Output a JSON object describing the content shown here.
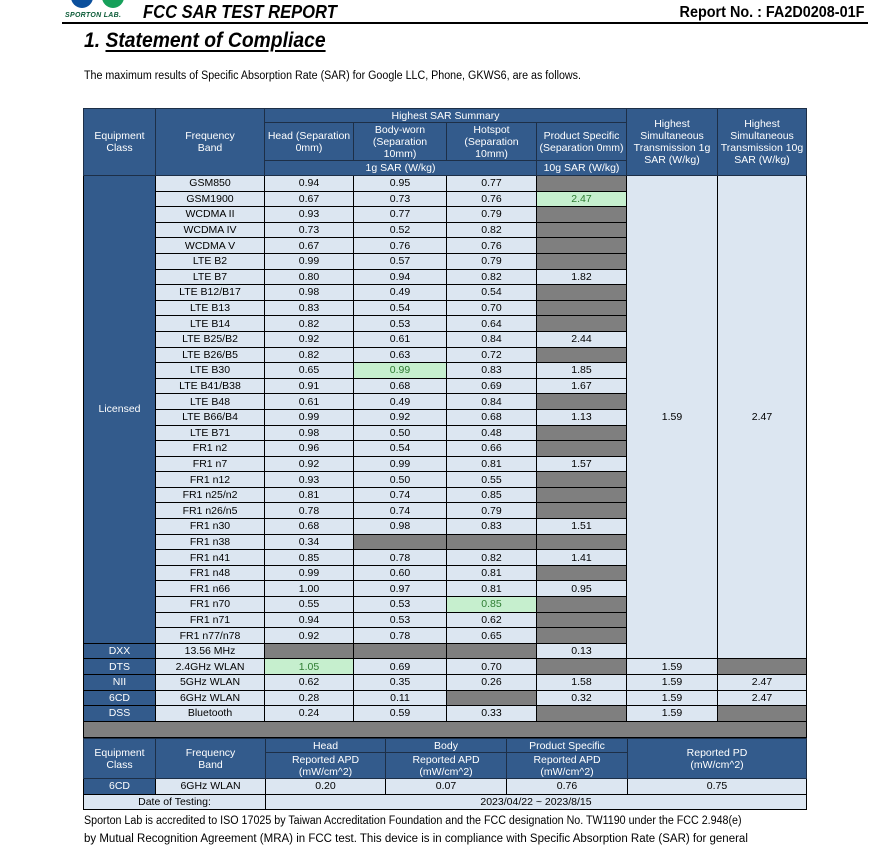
{
  "header": {
    "logo_text": "SPORTON LAB.",
    "title": "FCC SAR TEST REPORT",
    "report_no": "Report No. : FA2D0208-01F"
  },
  "section": {
    "number": "1.",
    "title": "Statement of Compliace"
  },
  "intro": "The maximum results of Specific Absorption Rate (SAR) for Google LLC, Phone, GKWS6, are as follows.",
  "colors": {
    "header_bg": "#335b8c",
    "cell_bg": "#dce6f1",
    "na_bg": "#7f7f7f",
    "highlight_bg": "#c6efce",
    "highlight_text": "#2e7d32"
  },
  "sar_table": {
    "headers": {
      "equipment_class": "Equipment Class",
      "frequency_band": "Frequency Band",
      "summary": "Highest SAR Summary",
      "head": "Head (Separation 0mm)",
      "body": "Body-worn (Separation 10mm)",
      "hotspot": "Hotspot (Separation 10mm)",
      "product": "Product Specific (Separation 0mm)",
      "unit_1g": "1g SAR (W/kg)",
      "unit_10g": "10g SAR (W/kg)",
      "sim_1g": "Highest Simultaneous Transmission 1g SAR (W/kg)",
      "sim_10g": "Highest Simultaneous Transmission 10g SAR (W/kg)"
    },
    "licensed": {
      "class": "Licensed",
      "sim_1g": "1.59",
      "sim_10g": "2.47",
      "rows": [
        {
          "band": "GSM850",
          "head": "0.94",
          "body": "0.95",
          "hotspot": "0.77",
          "product": null
        },
        {
          "band": "GSM1900",
          "head": "0.67",
          "body": "0.73",
          "hotspot": "0.76",
          "product": "2.47",
          "highlight": "product"
        },
        {
          "band": "WCDMA II",
          "head": "0.93",
          "body": "0.77",
          "hotspot": "0.79",
          "product": null
        },
        {
          "band": "WCDMA IV",
          "head": "0.73",
          "body": "0.52",
          "hotspot": "0.82",
          "product": null
        },
        {
          "band": "WCDMA V",
          "head": "0.67",
          "body": "0.76",
          "hotspot": "0.76",
          "product": null
        },
        {
          "band": "LTE B2",
          "head": "0.99",
          "body": "0.57",
          "hotspot": "0.79",
          "product": null
        },
        {
          "band": "LTE B7",
          "head": "0.80",
          "body": "0.94",
          "hotspot": "0.82",
          "product": "1.82"
        },
        {
          "band": "LTE B12/B17",
          "head": "0.98",
          "body": "0.49",
          "hotspot": "0.54",
          "product": null
        },
        {
          "band": "LTE B13",
          "head": "0.83",
          "body": "0.54",
          "hotspot": "0.70",
          "product": null
        },
        {
          "band": "LTE B14",
          "head": "0.82",
          "body": "0.53",
          "hotspot": "0.64",
          "product": null
        },
        {
          "band": "LTE B25/B2",
          "head": "0.92",
          "body": "0.61",
          "hotspot": "0.84",
          "product": "2.44"
        },
        {
          "band": "LTE B26/B5",
          "head": "0.82",
          "body": "0.63",
          "hotspot": "0.72",
          "product": null
        },
        {
          "band": "LTE B30",
          "head": "0.65",
          "body": "0.99",
          "hotspot": "0.83",
          "product": "1.85",
          "highlight": "body"
        },
        {
          "band": "LTE B41/B38",
          "head": "0.91",
          "body": "0.68",
          "hotspot": "0.69",
          "product": "1.67"
        },
        {
          "band": "LTE B48",
          "head": "0.61",
          "body": "0.49",
          "hotspot": "0.84",
          "product": null
        },
        {
          "band": "LTE B66/B4",
          "head": "0.99",
          "body": "0.92",
          "hotspot": "0.68",
          "product": "1.13"
        },
        {
          "band": "LTE B71",
          "head": "0.98",
          "body": "0.50",
          "hotspot": "0.48",
          "product": null
        },
        {
          "band": "FR1 n2",
          "head": "0.96",
          "body": "0.54",
          "hotspot": "0.66",
          "product": null
        },
        {
          "band": "FR1 n7",
          "head": "0.92",
          "body": "0.99",
          "hotspot": "0.81",
          "product": "1.57"
        },
        {
          "band": "FR1 n12",
          "head": "0.93",
          "body": "0.50",
          "hotspot": "0.55",
          "product": null
        },
        {
          "band": "FR1 n25/n2",
          "head": "0.81",
          "body": "0.74",
          "hotspot": "0.85",
          "product": null
        },
        {
          "band": "FR1 n26/n5",
          "head": "0.78",
          "body": "0.74",
          "hotspot": "0.79",
          "product": null
        },
        {
          "band": "FR1 n30",
          "head": "0.68",
          "body": "0.98",
          "hotspot": "0.83",
          "product": "1.51"
        },
        {
          "band": "FR1 n38",
          "head": "0.34",
          "body": null,
          "hotspot": null,
          "product": null
        },
        {
          "band": "FR1 n41",
          "head": "0.85",
          "body": "0.78",
          "hotspot": "0.82",
          "product": "1.41"
        },
        {
          "band": "FR1 n48",
          "head": "0.99",
          "body": "0.60",
          "hotspot": "0.81",
          "product": null
        },
        {
          "band": "FR1 n66",
          "head": "1.00",
          "body": "0.97",
          "hotspot": "0.81",
          "product": "0.95"
        },
        {
          "band": "FR1 n70",
          "head": "0.55",
          "body": "0.53",
          "hotspot": "0.85",
          "product": null,
          "highlight": "hotspot"
        },
        {
          "band": "FR1 n71",
          "head": "0.94",
          "body": "0.53",
          "hotspot": "0.62",
          "product": null
        },
        {
          "band": "FR1 n77/n78",
          "head": "0.92",
          "body": "0.78",
          "hotspot": "0.65",
          "product": null
        }
      ]
    },
    "dxx": {
      "class": "DXX",
      "band": "13.56 MHz",
      "head": null,
      "body": null,
      "hotspot": null,
      "product": "0.13"
    },
    "others": [
      {
        "class": "DTS",
        "band": "2.4GHz WLAN",
        "head": "1.05",
        "body": "0.69",
        "hotspot": "0.70",
        "product": null,
        "sim_1g": "1.59",
        "sim_10g": null,
        "highlight": "head"
      },
      {
        "class": "NII",
        "band": "5GHz WLAN",
        "head": "0.62",
        "body": "0.35",
        "hotspot": "0.26",
        "product": "1.58",
        "sim_1g": "1.59",
        "sim_10g": "2.47"
      },
      {
        "class": "6CD",
        "band": "6GHz WLAN",
        "head": "0.28",
        "body": "0.11",
        "hotspot": null,
        "product": "0.32",
        "sim_1g": "1.59",
        "sim_10g": "2.47"
      },
      {
        "class": "DSS",
        "band": "Bluetooth",
        "head": "0.24",
        "body": "0.59",
        "hotspot": "0.33",
        "product": null,
        "sim_1g": "1.59",
        "sim_10g": null
      }
    ]
  },
  "apd_table": {
    "headers": {
      "equipment_class": "Equipment Class",
      "frequency_band": "Frequency Band",
      "head": "Head",
      "body": "Body",
      "product": "Product Specific",
      "apd": "Reported APD (mW/cm^2)",
      "pd": "Reported PD (mW/cm^2)"
    },
    "row": {
      "class": "6CD",
      "band": "6GHz WLAN",
      "head": "0.20",
      "body": "0.07",
      "product": "0.76",
      "pd": "0.75"
    },
    "date_label": "Date of Testing:",
    "date_value": "2023/04/22 ~ 2023/8/15"
  },
  "footer": {
    "line1": "Sporton Lab is accredited to ISO 17025 by Taiwan Accreditation Foundation and the FCC designation No. TW1190 under the FCC 2.948(e)",
    "line2": "by Mutual Recognition Agreement (MRA) in FCC test. This device is in compliance with Specific Absorption Rate (SAR) for general"
  }
}
